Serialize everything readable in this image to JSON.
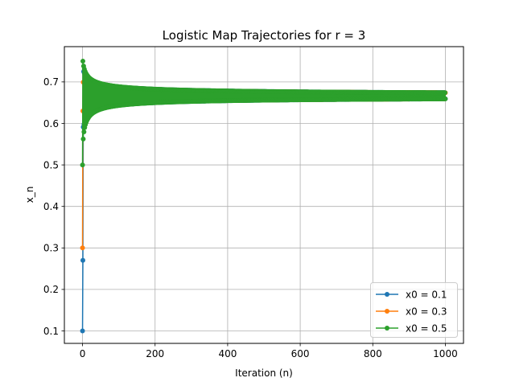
{
  "chart_data": {
    "type": "line",
    "title": "Logistic Map Trajectories for r = 3",
    "xlabel": "Iteration (n)",
    "ylabel": "x_n",
    "xlim": [
      -50,
      1050
    ],
    "ylim": [
      0.07,
      0.785
    ],
    "xticks": [
      0,
      200,
      400,
      600,
      800,
      1000
    ],
    "yticks": [
      0.1,
      0.2,
      0.3,
      0.4,
      0.5,
      0.6,
      0.7
    ],
    "xtick_labels": [
      "0",
      "200",
      "400",
      "600",
      "800",
      "1000"
    ],
    "ytick_labels": [
      "0.1",
      "0.2",
      "0.3",
      "0.4",
      "0.5",
      "0.6",
      "0.7"
    ],
    "grid": true,
    "legend_position": "lower-right",
    "r": 3,
    "n_iterations": 1000,
    "series": [
      {
        "name": "x0 = 0.1",
        "x0": 0.1,
        "color": "#1f77b4"
      },
      {
        "name": "x0 = 0.3",
        "x0": 0.3,
        "color": "#ff7f0e"
      },
      {
        "name": "x0 = 0.5",
        "x0": 0.5,
        "color": "#2ca02c"
      }
    ]
  }
}
